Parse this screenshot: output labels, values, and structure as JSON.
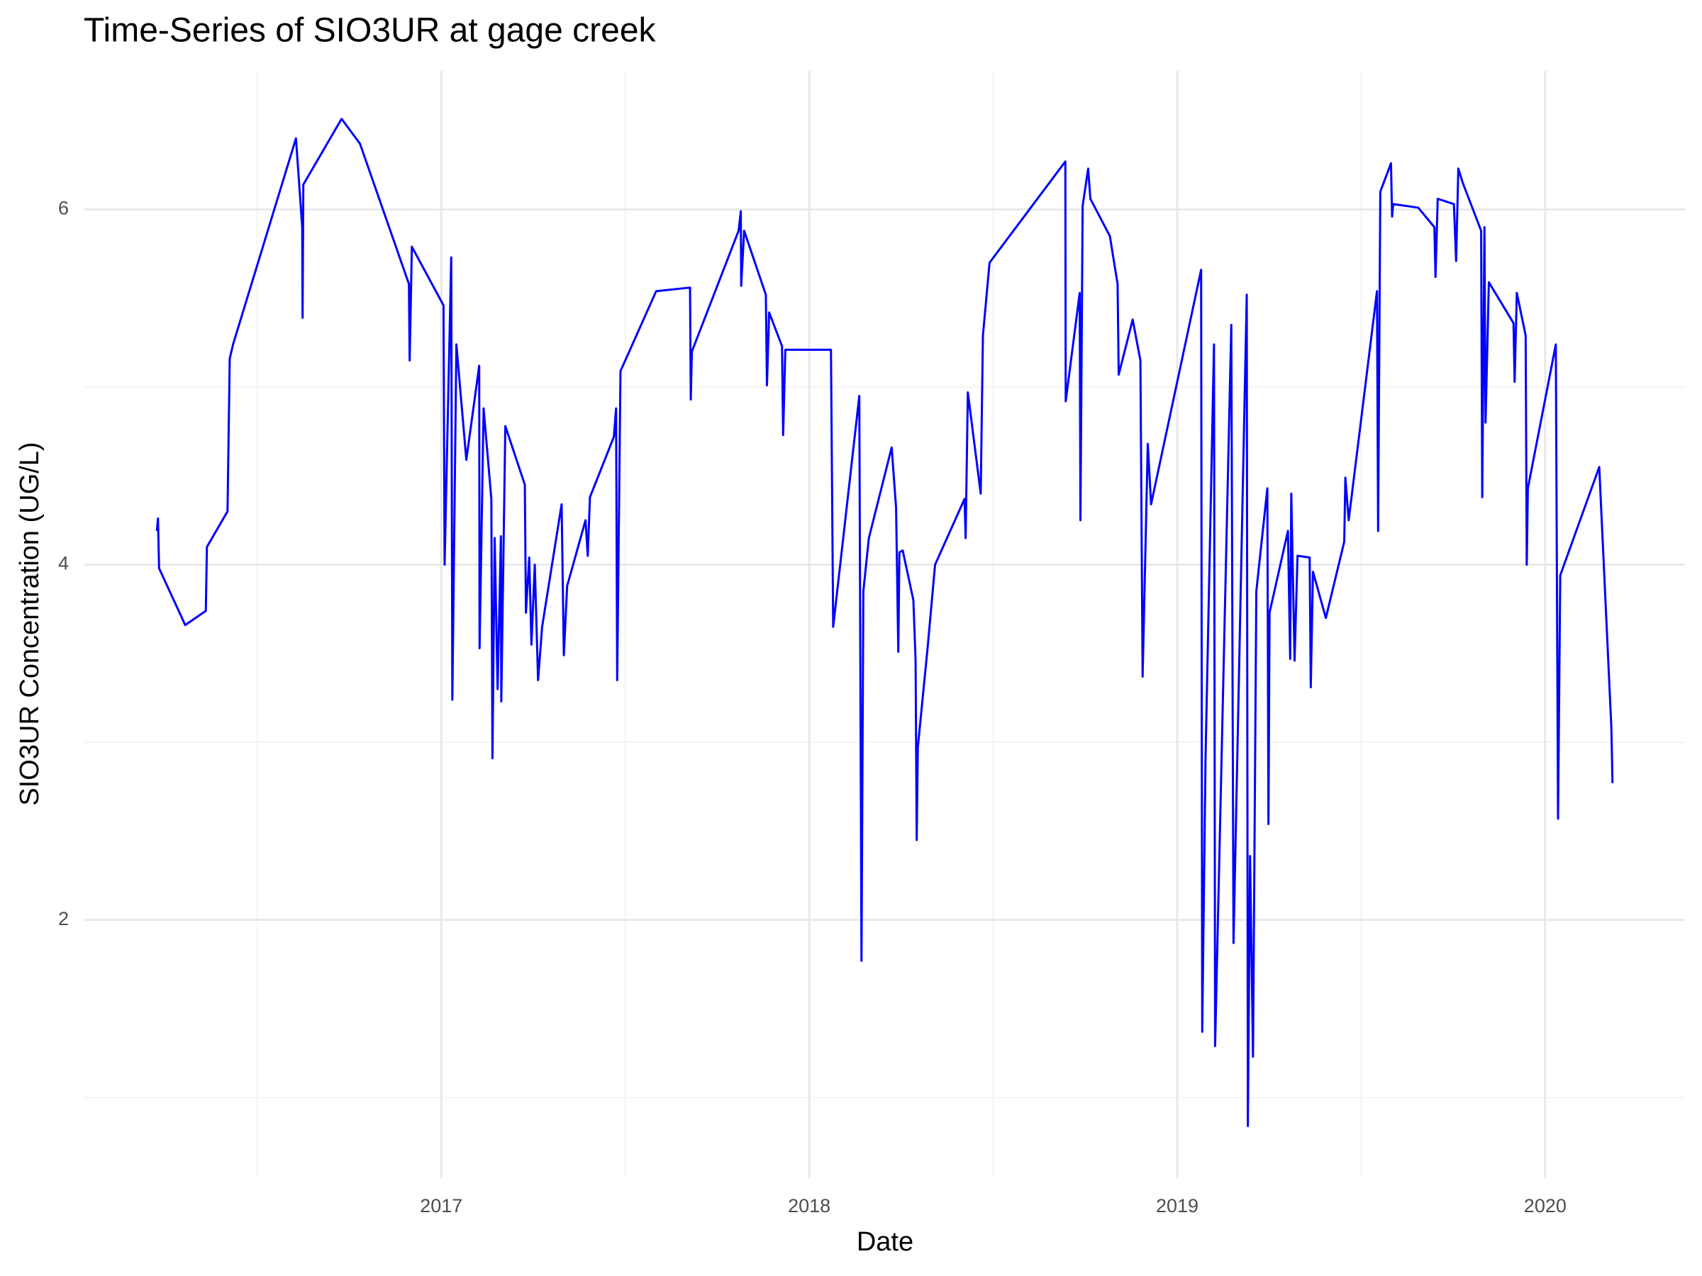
{
  "chart_data": {
    "type": "line",
    "title": "Time-Series of SIO3UR at gage creek",
    "x_label": "Date",
    "y_label": "SIO3UR Concentration (UG/L)",
    "color": "#0000ff",
    "grid": true,
    "xlim": [
      2016.03,
      2020.38
    ],
    "ylim": [
      0.55,
      6.78
    ],
    "xticks": [
      2017,
      2018,
      2019,
      2020
    ],
    "yticks": [
      2,
      4,
      6
    ],
    "xminor": [
      2016.5,
      2017.5,
      2018.5,
      2019.5
    ],
    "yminor": [
      1,
      3,
      5
    ],
    "x": [
      2016.227,
      2016.23,
      2016.233,
      2016.304,
      2016.36,
      2016.363,
      2016.419,
      2016.425,
      2016.434,
      2016.605,
      2016.622,
      2016.623,
      2016.625,
      2016.729,
      2016.779,
      2016.912,
      2016.914,
      2016.92,
      2017.006,
      2017.009,
      2017.027,
      2017.03,
      2017.041,
      2017.068,
      2017.103,
      2017.104,
      2017.115,
      2017.136,
      2017.139,
      2017.145,
      2017.153,
      2017.162,
      2017.163,
      2017.174,
      2017.227,
      2017.23,
      2017.239,
      2017.245,
      2017.254,
      2017.263,
      2017.274,
      2017.327,
      2017.333,
      2017.342,
      2017.392,
      2017.398,
      2017.404,
      2017.469,
      2017.475,
      2017.478,
      2017.487,
      2017.584,
      2017.676,
      2017.678,
      2017.681,
      2017.808,
      2017.814,
      2017.815,
      2017.823,
      2017.882,
      2017.885,
      2017.891,
      2017.926,
      2017.929,
      2017.935,
      2018.059,
      2018.065,
      2018.136,
      2018.142,
      2018.147,
      2018.162,
      2018.224,
      2018.236,
      2018.242,
      2018.245,
      2018.254,
      2018.283,
      2018.289,
      2018.292,
      2018.295,
      2018.322,
      2018.342,
      2018.422,
      2018.425,
      2018.431,
      2018.466,
      2018.472,
      2018.49,
      2018.696,
      2018.697,
      2018.735,
      2018.737,
      2018.743,
      2018.758,
      2018.764,
      2018.817,
      2018.838,
      2018.841,
      2018.879,
      2018.9,
      2018.906,
      2018.92,
      2018.929,
      2019.065,
      2019.068,
      2019.077,
      2019.1,
      2019.103,
      2019.147,
      2019.153,
      2019.189,
      2019.192,
      2019.198,
      2019.206,
      2019.215,
      2019.245,
      2019.248,
      2019.251,
      2019.301,
      2019.307,
      2019.31,
      2019.319,
      2019.327,
      2019.36,
      2019.363,
      2019.369,
      2019.404,
      2019.454,
      2019.457,
      2019.466,
      2019.543,
      2019.546,
      2019.552,
      2019.581,
      2019.584,
      2019.587,
      2019.655,
      2019.699,
      2019.702,
      2019.708,
      2019.752,
      2019.758,
      2019.764,
      2019.776,
      2019.826,
      2019.829,
      2019.835,
      2019.838,
      2019.847,
      2019.914,
      2019.917,
      2019.923,
      2019.947,
      2019.95,
      2019.953,
      2020.029,
      2020.035,
      2020.041,
      2020.147,
      2020.18,
      2020.183
    ],
    "values": [
      4.19,
      4.26,
      3.98,
      3.66,
      3.74,
      4.1,
      4.3,
      5.16,
      5.24,
      6.4,
      5.9,
      5.39,
      6.14,
      6.51,
      6.37,
      5.58,
      5.15,
      5.79,
      5.46,
      4.0,
      5.73,
      3.24,
      5.24,
      4.59,
      5.12,
      3.53,
      4.88,
      4.37,
      2.91,
      4.15,
      3.3,
      4.16,
      3.23,
      4.78,
      4.45,
      3.73,
      4.04,
      3.55,
      4.0,
      3.35,
      3.65,
      4.34,
      3.49,
      3.88,
      4.25,
      4.05,
      4.38,
      4.72,
      4.88,
      3.35,
      5.09,
      5.54,
      5.56,
      4.93,
      5.2,
      5.88,
      5.99,
      5.57,
      5.88,
      5.52,
      5.01,
      5.42,
      5.23,
      4.73,
      5.21,
      5.21,
      3.65,
      4.95,
      1.77,
      3.85,
      4.15,
      4.66,
      4.32,
      3.51,
      4.07,
      4.08,
      3.8,
      3.46,
      2.45,
      2.97,
      3.54,
      4.0,
      4.37,
      4.15,
      4.97,
      4.4,
      5.29,
      5.7,
      6.27,
      4.92,
      5.53,
      4.25,
      6.02,
      6.23,
      6.06,
      5.85,
      5.58,
      5.07,
      5.38,
      5.15,
      3.37,
      4.68,
      4.34,
      5.66,
      1.37,
      2.91,
      5.24,
      1.29,
      5.35,
      1.87,
      5.52,
      0.84,
      2.36,
      1.23,
      3.85,
      4.43,
      2.54,
      3.73,
      4.19,
      3.47,
      4.4,
      3.46,
      4.05,
      4.04,
      3.31,
      3.96,
      3.7,
      4.13,
      4.49,
      4.25,
      5.54,
      4.19,
      6.1,
      6.26,
      5.96,
      6.03,
      6.01,
      5.9,
      5.62,
      6.06,
      6.03,
      5.71,
      6.23,
      6.15,
      5.88,
      4.38,
      5.9,
      4.8,
      5.59,
      5.36,
      5.03,
      5.53,
      5.29,
      4.0,
      4.43,
      5.24,
      2.57,
      3.94,
      4.55,
      3.08,
      2.77
    ]
  }
}
